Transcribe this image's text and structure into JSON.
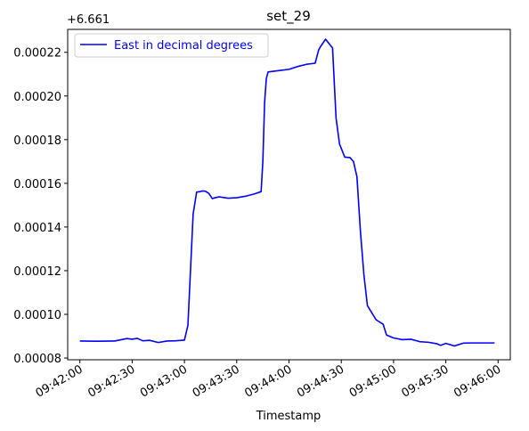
{
  "chart_data": {
    "type": "line",
    "title": "set_29",
    "xlabel": "Timestamp",
    "ylabel": "",
    "y_offset_label": "+6.661",
    "y_offset": 6.661,
    "legend_position": "upper-left",
    "grid": false,
    "x_tick_labels": [
      "09:42:00",
      "09:42:30",
      "09:43:00",
      "09:43:30",
      "09:44:00",
      "09:44:30",
      "09:45:00",
      "09:45:30",
      "09:46:00"
    ],
    "y_tick_labels": [
      "0.00008",
      "0.00010",
      "0.00012",
      "0.00014",
      "0.00016",
      "0.00018",
      "0.00020",
      "0.00022"
    ],
    "xlim": [
      "09:41:53",
      "09:46:07"
    ],
    "ylim": [
      7.92e-05,
      0.0002305
    ],
    "series": [
      {
        "name": "East in decimal degrees",
        "color": "#0000ff",
        "x": [
          "09:42:00",
          "09:42:10",
          "09:42:20",
          "09:42:27",
          "09:42:30",
          "09:42:33",
          "09:42:36",
          "09:42:40",
          "09:42:45",
          "09:42:50",
          "09:42:55",
          "09:43:00",
          "09:43:02",
          "09:43:03",
          "09:43:05",
          "09:43:07",
          "09:43:09",
          "09:43:10",
          "09:43:12",
          "09:43:14",
          "09:43:16",
          "09:43:18",
          "09:43:20",
          "09:43:25",
          "09:43:30",
          "09:43:35",
          "09:43:40",
          "09:43:44",
          "09:43:45",
          "09:43:46",
          "09:43:47",
          "09:43:48",
          "09:43:50",
          "09:43:55",
          "09:44:00",
          "09:44:05",
          "09:44:10",
          "09:44:13",
          "09:44:15",
          "09:44:17",
          "09:44:18",
          "09:44:21",
          "09:44:23",
          "09:44:25",
          "09:44:27",
          "09:44:29",
          "09:44:32",
          "09:44:35",
          "09:44:37",
          "09:44:39",
          "09:44:41",
          "09:44:43",
          "09:44:45",
          "09:44:50",
          "09:44:54",
          "09:44:56",
          "09:45:00",
          "09:45:05",
          "09:45:10",
          "09:45:15",
          "09:45:20",
          "09:45:25",
          "09:45:27",
          "09:45:30",
          "09:45:35",
          "09:45:36",
          "09:45:40",
          "09:45:45",
          "09:45:58"
        ],
        "values": [
          8.78e-05,
          8.77e-05,
          8.78e-05,
          8.89e-05,
          8.86e-05,
          8.9e-05,
          8.79e-05,
          8.81e-05,
          8.71e-05,
          8.78e-05,
          8.79e-05,
          8.82e-05,
          9.5e-05,
          0.000112,
          0.000146,
          0.000156,
          0.0001562,
          0.0001565,
          0.0001564,
          0.0001554,
          0.000153,
          0.0001535,
          0.0001538,
          0.0001532,
          0.0001534,
          0.0001541,
          0.0001551,
          0.0001562,
          0.00017,
          0.000197,
          0.000208,
          0.000211,
          0.0002112,
          0.0002117,
          0.0002122,
          0.0002135,
          0.0002145,
          0.0002148,
          0.000215,
          0.000221,
          0.0002225,
          0.000226,
          0.000224,
          0.000222,
          0.00019,
          0.000178,
          0.000172,
          0.0001718,
          0.00017,
          0.000163,
          0.000138,
          0.000118,
          0.000104,
          9.75e-05,
          9.55e-05,
          9.05e-05,
          8.92e-05,
          8.84e-05,
          8.86e-05,
          8.75e-05,
          8.72e-05,
          8.65e-05,
          8.58e-05,
          8.67e-05,
          8.55e-05,
          8.58e-05,
          8.68e-05,
          8.69e-05,
          8.69e-05
        ]
      }
    ]
  }
}
